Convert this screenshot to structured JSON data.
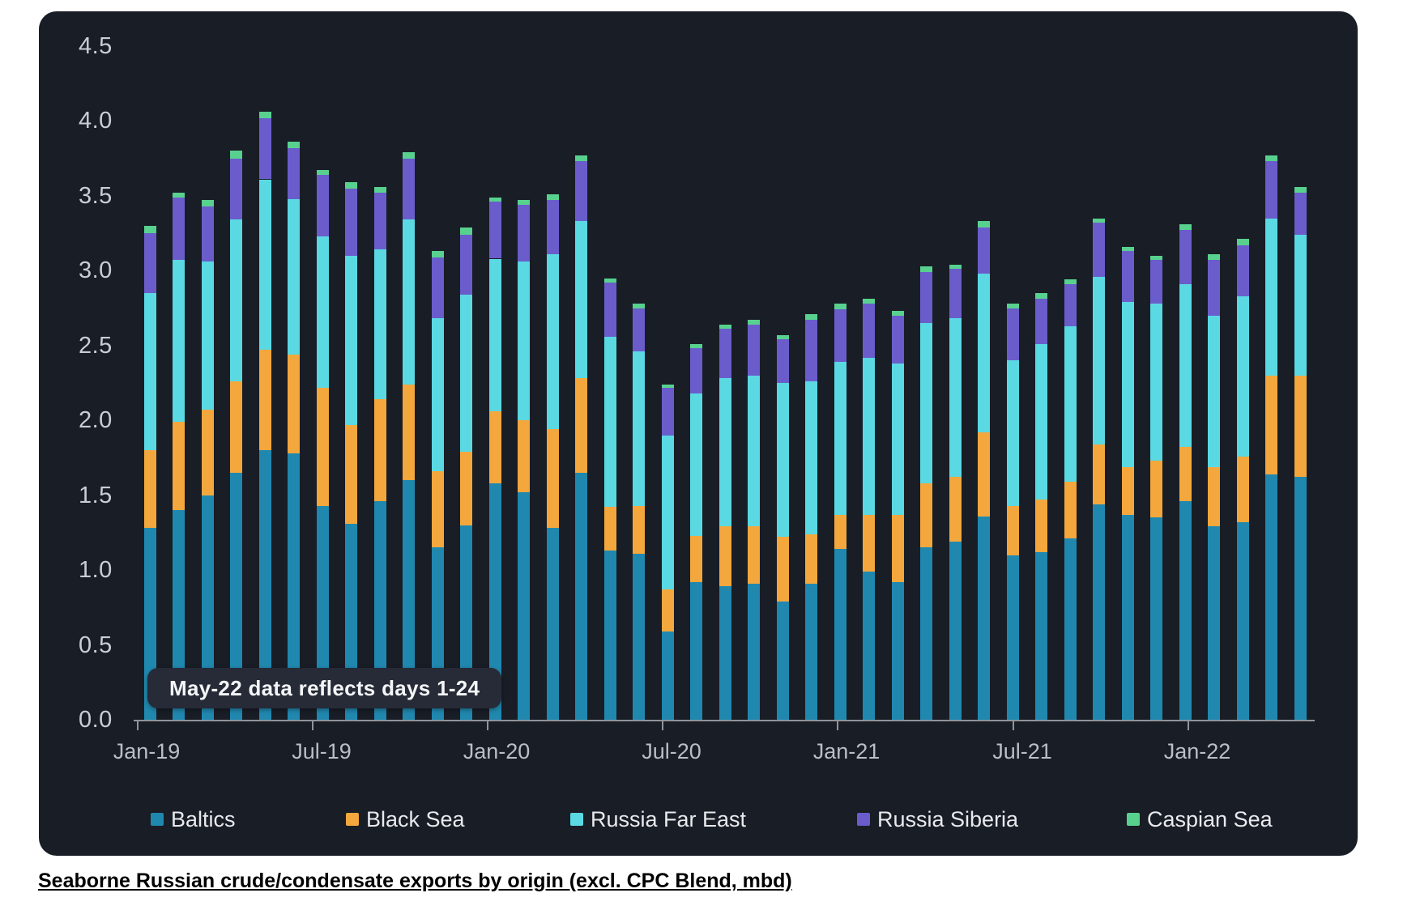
{
  "panel": {
    "background_color": "#191d26",
    "axis_color": "#8f949b",
    "y_label_color": "#c9ced6",
    "x_label_color": "#b9bfc8",
    "legend_text_color": "#e8eaed"
  },
  "chart_data": {
    "type": "bar",
    "stacked": true,
    "title": "",
    "xlabel": "",
    "ylabel": "",
    "ylim": [
      0,
      4.5
    ],
    "grid": false,
    "legend_position": "bottom",
    "ytick_labels": [
      "0.0",
      "0.5",
      "1.0",
      "1.5",
      "2.0",
      "2.5",
      "3.0",
      "3.5",
      "4.0",
      "4.5"
    ],
    "ytick_values": [
      0.0,
      0.5,
      1.0,
      1.5,
      2.0,
      2.5,
      3.0,
      3.5,
      4.0,
      4.5
    ],
    "xtick_labels": [
      "Jan-19",
      "Jul-19",
      "Jan-20",
      "Jul-20",
      "Jan-21",
      "Jul-21",
      "Jan-22"
    ],
    "categories": [
      "Jan-19",
      "Feb-19",
      "Mar-19",
      "Apr-19",
      "May-19",
      "Jun-19",
      "Jul-19",
      "Aug-19",
      "Sep-19",
      "Oct-19",
      "Nov-19",
      "Dec-19",
      "Jan-20",
      "Feb-20",
      "Mar-20",
      "Apr-20",
      "May-20",
      "Jun-20",
      "Jul-20",
      "Aug-20",
      "Sep-20",
      "Oct-20",
      "Nov-20",
      "Dec-20",
      "Jan-21",
      "Feb-21",
      "Mar-21",
      "Apr-21",
      "May-21",
      "Jun-21",
      "Jul-21",
      "Aug-21",
      "Sep-21",
      "Oct-21",
      "Nov-21",
      "Dec-21",
      "Jan-22",
      "Feb-22",
      "Mar-22",
      "Apr-22",
      "May-22"
    ],
    "series": [
      {
        "name": "Baltics",
        "color": "#2088af",
        "values": [
          1.28,
          1.4,
          1.5,
          1.65,
          1.8,
          1.78,
          1.43,
          1.31,
          1.46,
          1.6,
          1.15,
          1.3,
          1.58,
          1.52,
          1.28,
          1.65,
          1.13,
          1.11,
          0.59,
          0.92,
          0.89,
          0.91,
          0.79,
          0.91,
          1.14,
          0.99,
          0.92,
          1.15,
          1.19,
          1.36,
          1.1,
          1.12,
          1.21,
          1.44,
          1.37,
          1.35,
          1.46,
          1.29,
          1.32,
          1.64,
          1.62
        ]
      },
      {
        "name": "Black Sea",
        "color": "#f3a73d",
        "values": [
          0.52,
          0.59,
          0.57,
          0.61,
          0.67,
          0.66,
          0.79,
          0.66,
          0.68,
          0.64,
          0.51,
          0.49,
          0.48,
          0.48,
          0.66,
          0.63,
          0.29,
          0.32,
          0.28,
          0.31,
          0.4,
          0.38,
          0.43,
          0.33,
          0.23,
          0.38,
          0.45,
          0.43,
          0.43,
          0.56,
          0.33,
          0.35,
          0.38,
          0.4,
          0.32,
          0.38,
          0.36,
          0.4,
          0.44,
          0.66,
          0.68
        ]
      },
      {
        "name": "Russia Far East",
        "color": "#5ad9e3",
        "values": [
          1.05,
          1.08,
          0.99,
          1.08,
          1.14,
          1.04,
          1.01,
          1.13,
          1.0,
          1.1,
          1.02,
          1.05,
          1.02,
          1.06,
          1.17,
          1.05,
          1.14,
          1.03,
          1.03,
          0.95,
          0.99,
          1.01,
          1.03,
          1.02,
          1.02,
          1.05,
          1.01,
          1.07,
          1.06,
          1.06,
          0.97,
          1.04,
          1.04,
          1.12,
          1.1,
          1.05,
          1.09,
          1.01,
          1.07,
          1.05,
          0.94
        ]
      },
      {
        "name": "Russia Siberia",
        "color": "#6a5dcb",
        "values": [
          0.4,
          0.42,
          0.37,
          0.41,
          0.41,
          0.34,
          0.41,
          0.45,
          0.38,
          0.41,
          0.41,
          0.4,
          0.38,
          0.38,
          0.36,
          0.4,
          0.36,
          0.29,
          0.32,
          0.3,
          0.33,
          0.34,
          0.29,
          0.41,
          0.35,
          0.36,
          0.32,
          0.34,
          0.33,
          0.31,
          0.35,
          0.3,
          0.28,
          0.36,
          0.34,
          0.29,
          0.36,
          0.37,
          0.34,
          0.38,
          0.28
        ]
      },
      {
        "name": "Caspian Sea",
        "color": "#58d18f",
        "values": [
          0.05,
          0.03,
          0.04,
          0.05,
          0.04,
          0.04,
          0.03,
          0.04,
          0.04,
          0.04,
          0.04,
          0.05,
          0.03,
          0.03,
          0.04,
          0.04,
          0.03,
          0.03,
          0.02,
          0.03,
          0.03,
          0.03,
          0.03,
          0.04,
          0.04,
          0.03,
          0.03,
          0.04,
          0.03,
          0.04,
          0.03,
          0.04,
          0.03,
          0.03,
          0.03,
          0.03,
          0.04,
          0.04,
          0.04,
          0.04,
          0.04
        ]
      }
    ]
  },
  "annotation": {
    "text": "May-22 data reflects days 1-24"
  },
  "caption": {
    "text": "Seaborne Russian crude/condensate exports by origin (excl. CPC Blend, mbd)"
  }
}
